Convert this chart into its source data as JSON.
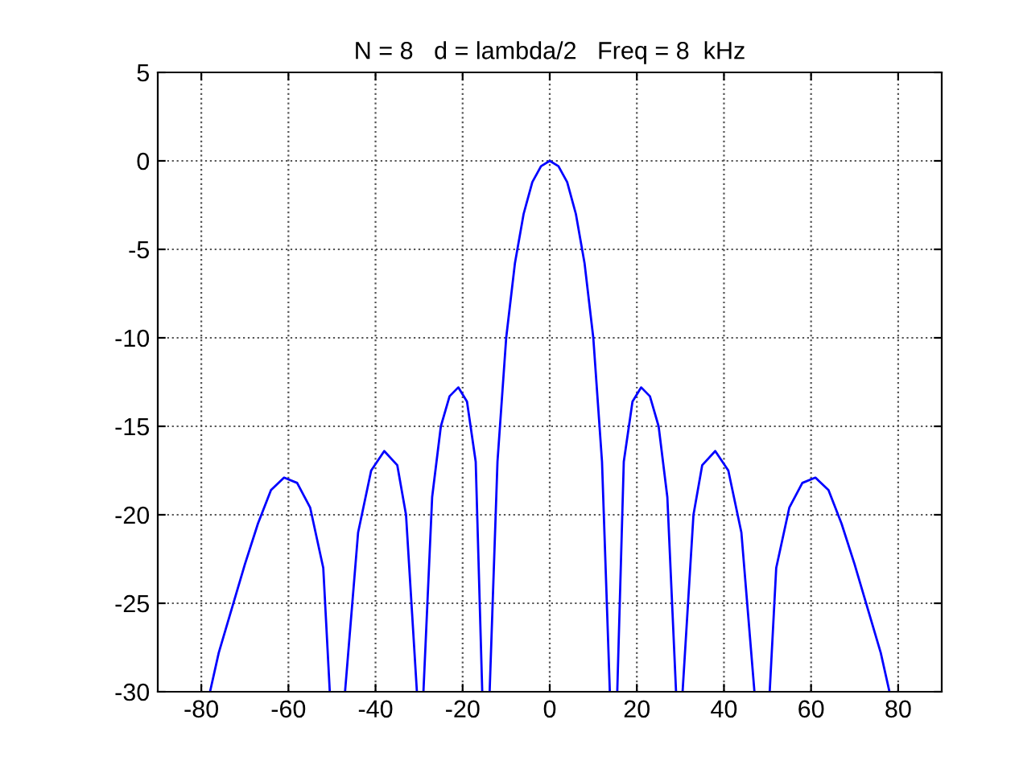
{
  "chart_data": {
    "type": "line",
    "title": "N = 8   d = lambda/2   Freq = 8  kHz",
    "x": [
      -78,
      -76,
      -73,
      -70,
      -67,
      -64,
      -61,
      -58,
      -55,
      -52,
      -50.5,
      -49,
      -47,
      -44,
      -41,
      -38,
      -35,
      -33,
      -30.5,
      -30,
      -29,
      -27,
      -25,
      -23,
      -21,
      -19,
      -17,
      -15.5,
      -14.5,
      -13.8,
      -12,
      -10,
      -8,
      -6,
      -4,
      -2,
      0,
      2,
      4,
      6,
      8,
      10,
      12,
      13.8,
      14.5,
      15.5,
      17,
      19,
      21,
      23,
      25,
      27,
      29,
      30,
      30.5,
      33,
      35,
      38,
      41,
      44,
      47,
      49,
      50.5,
      52,
      55,
      58,
      61,
      64,
      67,
      70,
      73,
      76,
      78
    ],
    "series": [
      {
        "color": "#0000ff",
        "values": [
          -30,
          -27.8,
          -25.3,
          -22.8,
          -20.5,
          -18.6,
          -17.9,
          -18.2,
          -19.6,
          -23,
          -30,
          null,
          -30,
          -21,
          -17.5,
          -16.4,
          -17.2,
          -20,
          -30,
          null,
          -30,
          -19,
          -15,
          -13.3,
          -12.8,
          -13.6,
          -17,
          -30,
          null,
          -30,
          -17,
          -10,
          -5.8,
          -3,
          -1.2,
          -0.3,
          0,
          -0.3,
          -1.2,
          -3,
          -5.8,
          -10,
          -17,
          -30,
          null,
          -30,
          -17,
          -13.6,
          -12.8,
          -13.3,
          -15,
          -19,
          -30,
          null,
          -30,
          -20,
          -17.2,
          -16.4,
          -17.5,
          -21,
          -30,
          null,
          -30,
          -23,
          -19.6,
          -18.2,
          -17.9,
          -18.6,
          -20.5,
          -22.8,
          -25.3,
          -27.8,
          -30
        ]
      }
    ],
    "xlim": [
      -90,
      90
    ],
    "ylim": [
      -30,
      5
    ],
    "xticks": [
      -80,
      -60,
      -40,
      -20,
      0,
      20,
      40,
      60,
      80
    ],
    "yticks": [
      -30,
      -25,
      -20,
      -15,
      -10,
      -5,
      0,
      5
    ],
    "grid": true,
    "legend": false
  }
}
